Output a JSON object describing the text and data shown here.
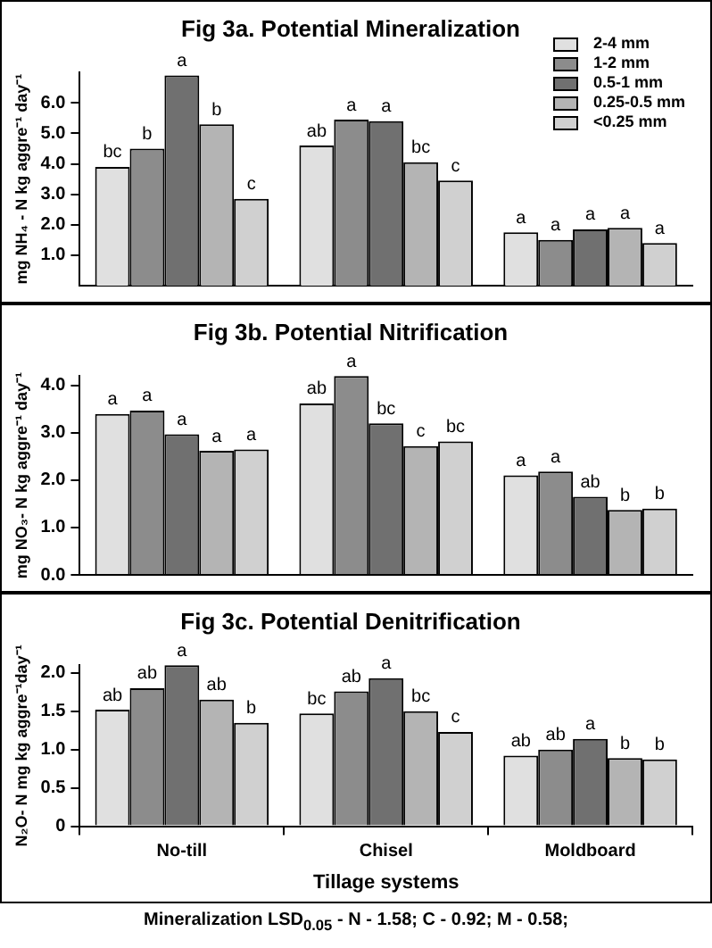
{
  "chart_data": [
    {
      "type": "bar",
      "title": "Fig 3a. Potential Mineralization",
      "ylabel": "mg NH₄ - N kg aggre⁻¹ day⁻¹",
      "categories": [
        null,
        null,
        null
      ],
      "tick_labels": "y",
      "grid": false,
      "legend": "top right",
      "ylim": [
        0,
        7
      ],
      "yticks": [
        {
          "value": 1,
          "label": "1.0"
        },
        {
          "value": 2,
          "label": "2.0"
        },
        {
          "value": 3,
          "label": "3.0"
        },
        {
          "value": 4,
          "label": "4.0"
        },
        {
          "value": 5,
          "label": "5.0"
        },
        {
          "value": 6,
          "label": "6.0"
        }
      ],
      "series": [
        {
          "name": "2-4 mm",
          "color": "#e0e0e0",
          "values": [
            3.9,
            4.6,
            1.75
          ],
          "value_labels": [
            "bc",
            "ab",
            "a"
          ]
        },
        {
          "name": "1-2 mm",
          "color": "#8c8c8c",
          "values": [
            4.5,
            5.45,
            1.5
          ],
          "value_labels": [
            "b",
            "a",
            "a"
          ]
        },
        {
          "name": "0.5-1 mm",
          "color": "#707070",
          "values": [
            6.9,
            5.4,
            1.85
          ],
          "value_labels": [
            "a",
            "a",
            "a"
          ]
        },
        {
          "name": "0.25-0.5 mm",
          "color": "#b4b4b4",
          "values": [
            5.3,
            4.05,
            1.9
          ],
          "value_labels": [
            "b",
            "bc",
            "a"
          ]
        },
        {
          "name": "<0.25 mm",
          "color": "#d0d0d0",
          "values": [
            2.85,
            3.45,
            1.4
          ],
          "value_labels": [
            "c",
            "c",
            "a"
          ]
        }
      ]
    },
    {
      "type": "bar",
      "title": "Fig 3b. Potential Nitrification",
      "ylabel": "mg NO₃- N kg aggre⁻¹ day⁻¹",
      "categories": [
        null,
        null,
        null
      ],
      "tick_labels": "y",
      "grid": false,
      "ylim": [
        0,
        4.2
      ],
      "yticks": [
        {
          "value": 0,
          "label": "0.0"
        },
        {
          "value": 1,
          "label": "1.0"
        },
        {
          "value": 2,
          "label": "2.0"
        },
        {
          "value": 3,
          "label": "3.0"
        },
        {
          "value": 4,
          "label": "4.0"
        }
      ],
      "series": [
        {
          "color": "#e0e0e0",
          "values": [
            3.4,
            3.62,
            2.1
          ],
          "value_labels": [
            "a",
            "ab",
            "a"
          ]
        },
        {
          "color": "#8c8c8c",
          "values": [
            3.47,
            4.2,
            2.18
          ],
          "value_labels": [
            "a",
            "a",
            "a"
          ]
        },
        {
          "color": "#707070",
          "values": [
            2.97,
            3.2,
            1.65
          ],
          "value_labels": [
            "a",
            "bc",
            "ab"
          ]
        },
        {
          "color": "#b4b4b4",
          "values": [
            2.62,
            2.72,
            1.37
          ],
          "value_labels": [
            "a",
            "c",
            "b"
          ]
        },
        {
          "color": "#d0d0d0",
          "values": [
            2.65,
            2.82,
            1.4
          ],
          "value_labels": [
            "a",
            "bc",
            "b"
          ]
        }
      ]
    },
    {
      "type": "bar",
      "title": "Fig 3c. Potential Denitrification",
      "ylabel": "N₂O- N mg kg aggre⁻¹day⁻¹",
      "xlabel": "Tillage systems",
      "categories": [
        "No-till",
        "Chisel",
        "Moldboard"
      ],
      "grid": false,
      "ylim": [
        0,
        2.1
      ],
      "yticks": [
        0,
        {
          "value": 0.5,
          "label": "0.5"
        },
        {
          "value": 1,
          "label": "1.0"
        },
        {
          "value": 1.5,
          "label": "1.5"
        },
        {
          "value": 2,
          "label": "2.0"
        }
      ],
      "annotations": [
        "Mineralization  LSD$_{0.05}$ - N - 1.58; C - 0.92; M - 0.58;"
      ],
      "series": [
        {
          "color": "#e0e0e0",
          "values": [
            1.52,
            1.47,
            0.92
          ],
          "value_labels": [
            "ab",
            "bc",
            "ab"
          ]
        },
        {
          "color": "#8c8c8c",
          "values": [
            1.8,
            1.76,
            1.0
          ],
          "value_labels": [
            "ab",
            "ab",
            "ab"
          ]
        },
        {
          "color": "#707070",
          "values": [
            2.1,
            1.93,
            1.14
          ],
          "value_labels": [
            "a",
            "a",
            "a"
          ]
        },
        {
          "color": "#b4b4b4",
          "values": [
            1.65,
            1.5,
            0.89
          ],
          "value_labels": [
            "ab",
            "bc",
            "b"
          ]
        },
        {
          "color": "#d0d0d0",
          "values": [
            1.35,
            1.23,
            0.87
          ],
          "value_labels": [
            "b",
            "c",
            "b"
          ]
        }
      ]
    }
  ]
}
